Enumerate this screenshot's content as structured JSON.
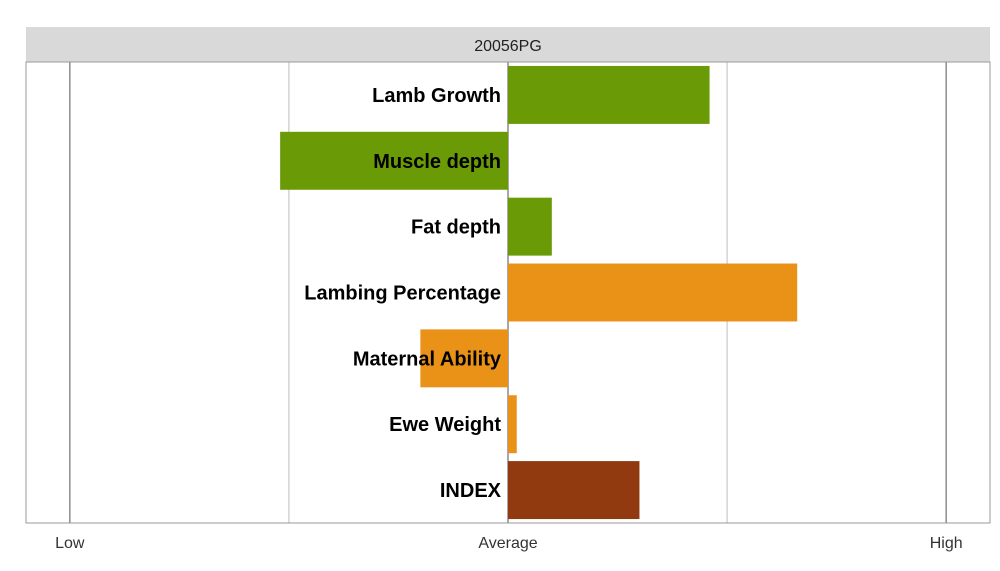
{
  "chart_data": {
    "type": "bar",
    "orientation": "horizontal",
    "title": "20056PG",
    "categories": [
      "Lamb Growth",
      "Muscle depth",
      "Fat depth",
      "Lambing Percentage",
      "Maternal Ability",
      "Ewe Weight",
      "INDEX"
    ],
    "values": [
      0.46,
      -0.52,
      0.1,
      0.66,
      -0.2,
      0.02,
      0.3
    ],
    "bar_colors": [
      "#6a9a05",
      "#6a9a05",
      "#6a9a05",
      "#ea9218",
      "#ea9218",
      "#ea9218",
      "#913a10"
    ],
    "xlim": [
      -1.1,
      1.1
    ],
    "xticks": [
      {
        "value": -1,
        "label": "Low"
      },
      {
        "value": 0,
        "label": "Average"
      },
      {
        "value": 1,
        "label": "High"
      }
    ],
    "minor_gridlines": [
      -0.5,
      0.5
    ],
    "xlabel": "",
    "ylabel": "",
    "grid": true,
    "legend": "none",
    "strip_color": "#d9d9d9",
    "grid_color": "#bdbdbd"
  }
}
